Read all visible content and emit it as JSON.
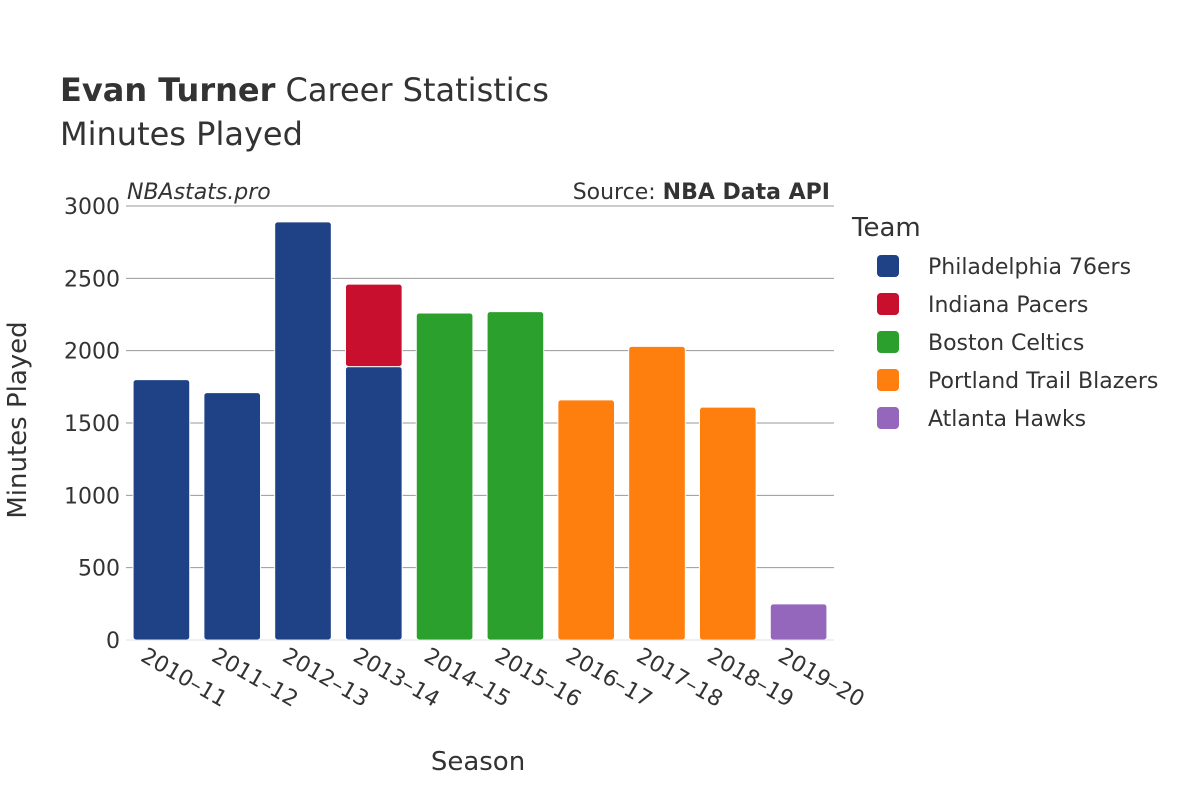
{
  "header": {
    "title_bold": "Evan Turner",
    "title_rest": "Career Statistics",
    "subtitle": "Minutes Played"
  },
  "watermark": "NBAstats.pro",
  "source": {
    "prefix": "Source: ",
    "name": "NBA Data API"
  },
  "legend": {
    "title": "Team"
  },
  "chart_data": {
    "type": "bar",
    "stacked": true,
    "xlabel": "Season",
    "ylabel": "Minutes Played",
    "ylim": [
      0,
      3000
    ],
    "yticks": [
      0,
      500,
      1000,
      1500,
      2000,
      2500,
      3000
    ],
    "grid": true,
    "legend_position": "right",
    "categories": [
      "2010–11",
      "2011–12",
      "2012–13",
      "2013–14",
      "2014–15",
      "2015–16",
      "2016–17",
      "2017–18",
      "2018–19",
      "2019–20"
    ],
    "series": [
      {
        "name": "Philadelphia 76ers",
        "color": "#1f4287",
        "values": [
          1800,
          1710,
          2890,
          1890,
          0,
          0,
          0,
          0,
          0,
          0
        ]
      },
      {
        "name": "Indiana Pacers",
        "color": "#c8102e",
        "values": [
          0,
          0,
          0,
          570,
          0,
          0,
          0,
          0,
          0,
          0
        ]
      },
      {
        "name": "Boston Celtics",
        "color": "#2ca02c",
        "values": [
          0,
          0,
          0,
          0,
          2260,
          2270,
          0,
          0,
          0,
          0
        ]
      },
      {
        "name": "Portland Trail Blazers",
        "color": "#ff7f0e",
        "values": [
          0,
          0,
          0,
          0,
          0,
          0,
          1660,
          2030,
          1610,
          0
        ]
      },
      {
        "name": "Atlanta Hawks",
        "color": "#9467bd",
        "values": [
          0,
          0,
          0,
          0,
          0,
          0,
          0,
          0,
          0,
          250
        ]
      }
    ]
  }
}
